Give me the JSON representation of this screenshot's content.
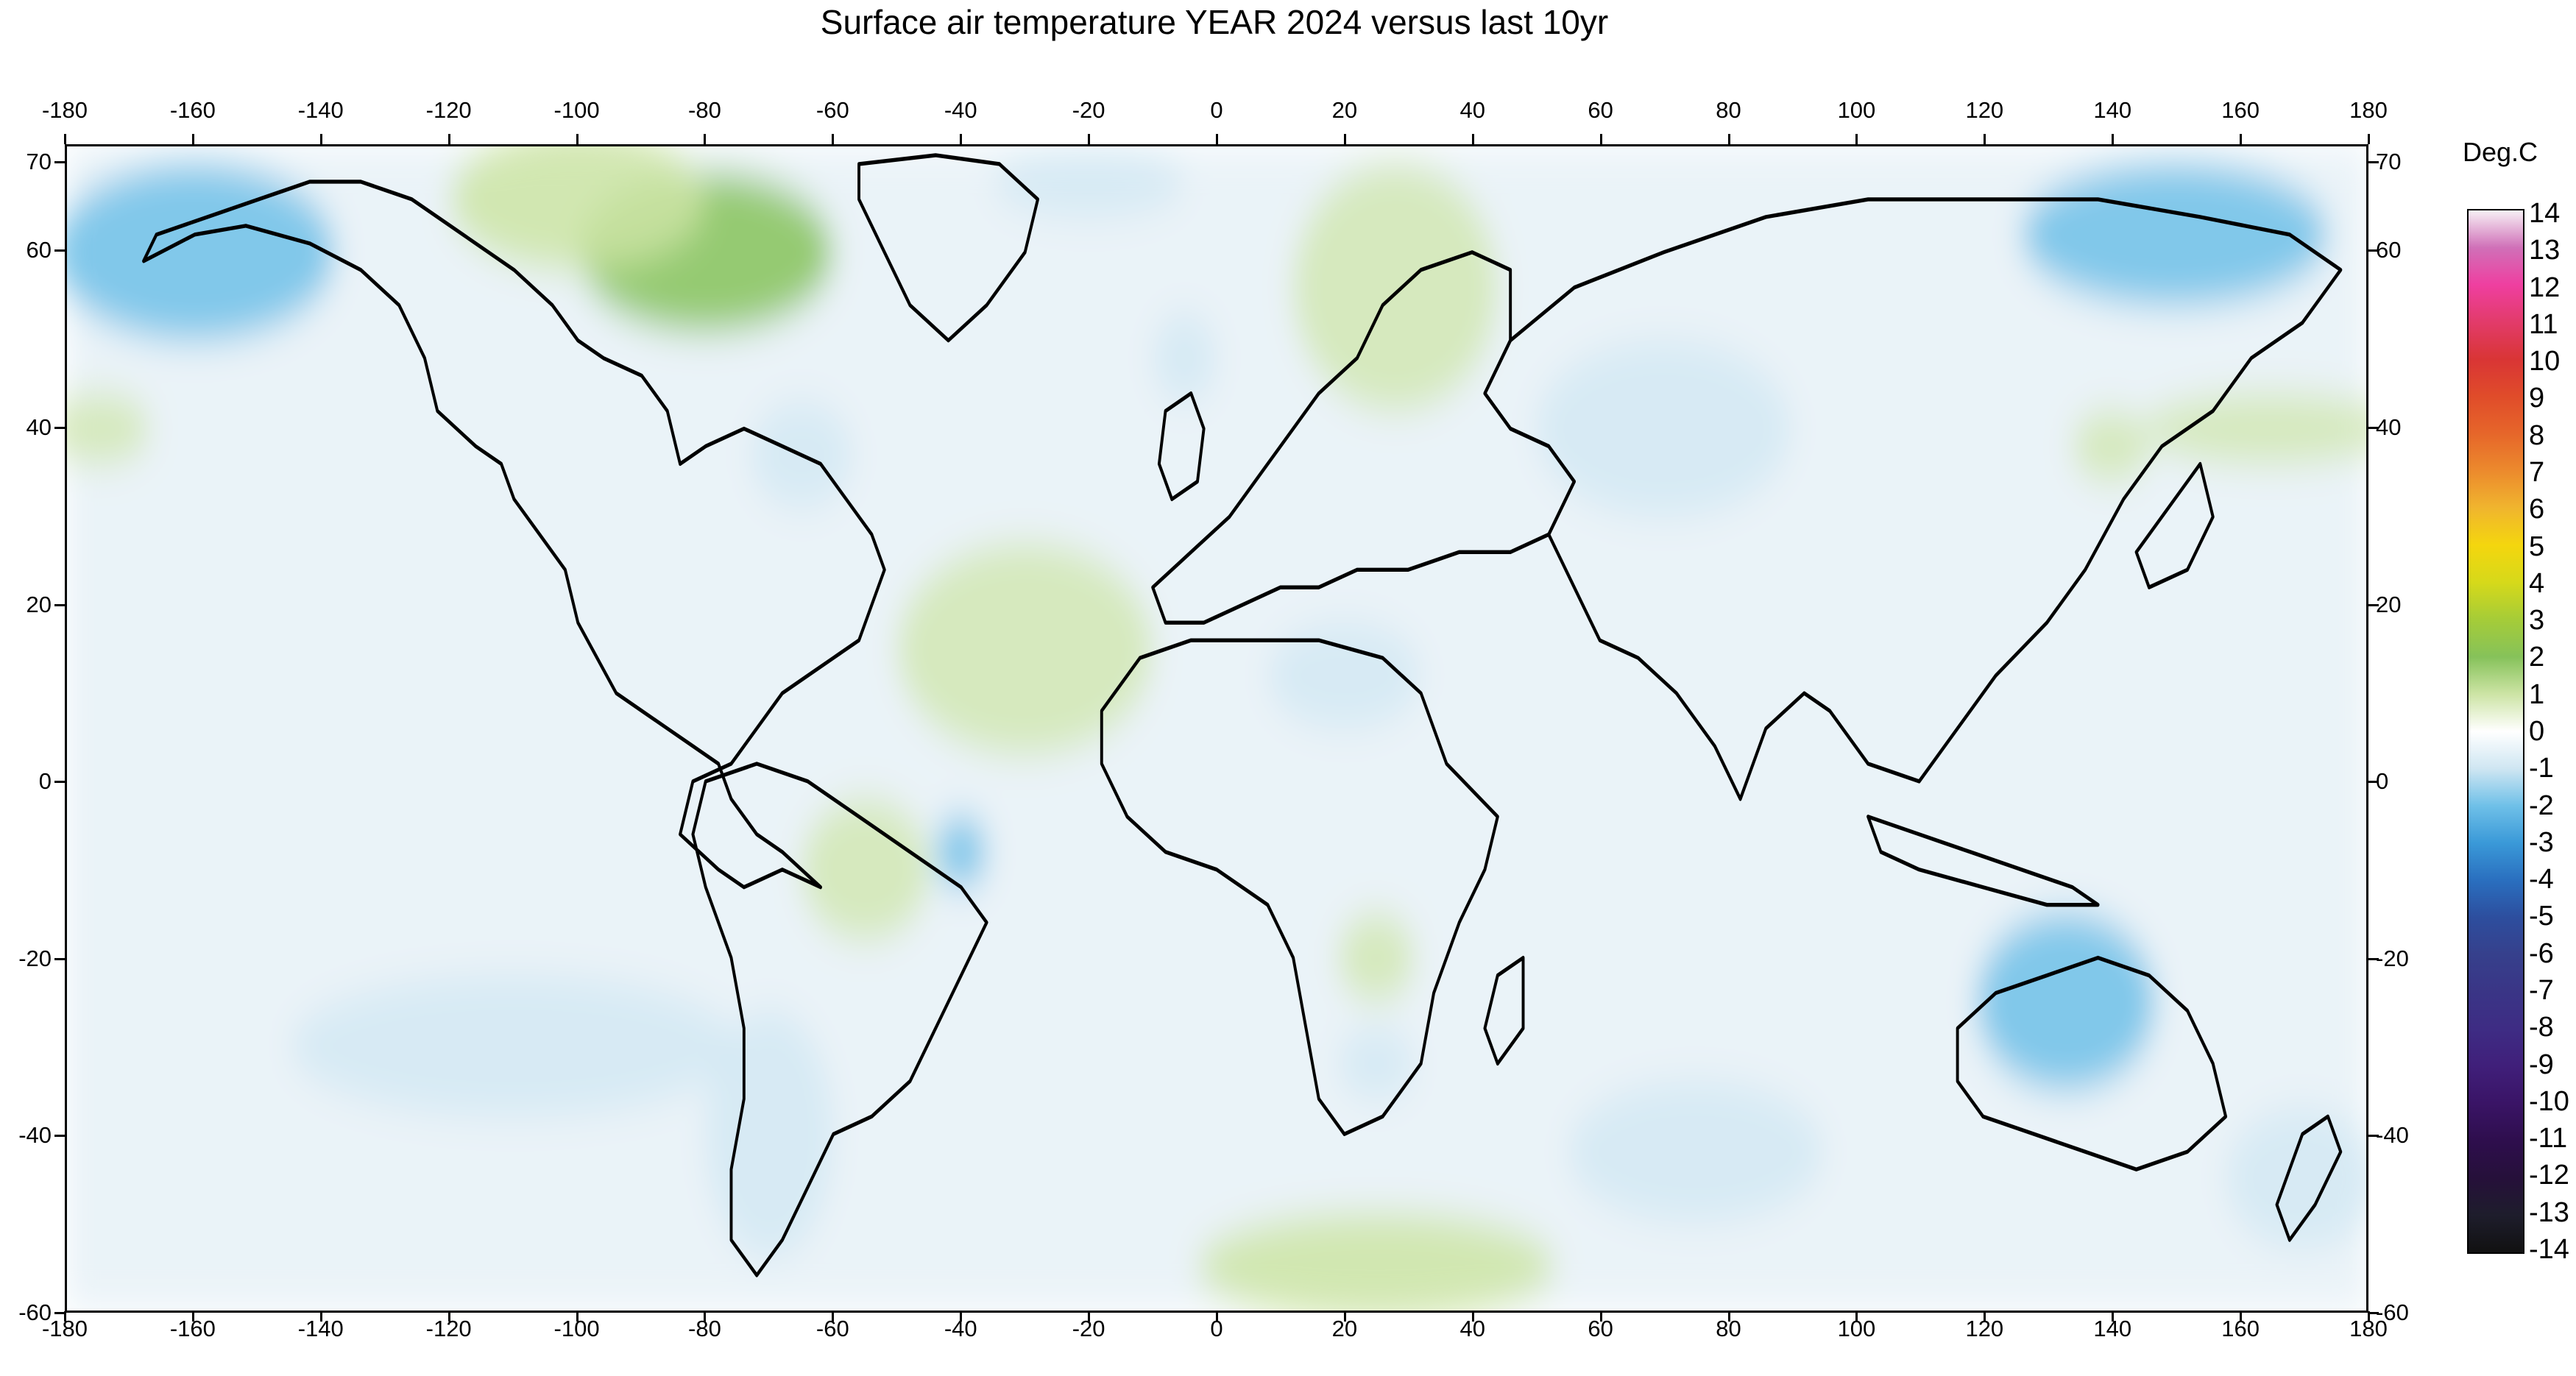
{
  "title": "Surface air temperature YEAR 2024 versus last 10yr",
  "legend": {
    "title": "Deg.C",
    "labels": [
      "14",
      "13",
      "12",
      "11",
      "10",
      "9",
      "8",
      "7",
      "6",
      "5",
      "4",
      "3",
      "2",
      "1",
      "0",
      "-1",
      "-2",
      "-3",
      "-4",
      "-5",
      "-6",
      "-7",
      "-8",
      "-9",
      "-10",
      "-11",
      "-12",
      "-13",
      "-14"
    ],
    "colors": [
      "#f7f0f5",
      "#d070b8",
      "#ef3fa0",
      "#e23b6a",
      "#d93535",
      "#e04c2a",
      "#e6662a",
      "#ec8a2d",
      "#f0b52e",
      "#f4d60e",
      "#d6d91a",
      "#a5cc38",
      "#86c25a",
      "#cde4a5",
      "#ffffff",
      "#cfe6f2",
      "#6fc0e8",
      "#3a99d8",
      "#2a6fbf",
      "#2d4e9e",
      "#36408c",
      "#3a3586",
      "#3e2c84",
      "#401f7a",
      "#3a1466",
      "#2e0e4d",
      "#26103a",
      "#1e1d2c",
      "#111111"
    ]
  },
  "axes": {
    "x_ticks": [
      "-180",
      "-160",
      "-140",
      "-120",
      "-100",
      "-80",
      "-60",
      "-40",
      "-20",
      "0",
      "20",
      "40",
      "60",
      "80",
      "100",
      "120",
      "140",
      "160",
      "180"
    ],
    "y_ticks": [
      "70",
      "60",
      "40",
      "20",
      "0",
      "-20",
      "-40",
      "-60"
    ]
  },
  "map": {
    "projection": "equirectangular",
    "lon_range": [
      -180,
      180
    ],
    "lat_range": [
      -60,
      72
    ],
    "anomaly_regions": [
      {
        "label": "Canada / Hudson Bay warm anomaly",
        "lon": -80,
        "lat": 60,
        "rx": 20,
        "ry": 9,
        "level": 2
      },
      {
        "label": "Northern Canada warm anomaly",
        "lon": -100,
        "lat": 66,
        "rx": 20,
        "ry": 8,
        "level": 1.5
      },
      {
        "label": "Eastern Europe / Scandinavia warm anomaly",
        "lon": 28,
        "lat": 56,
        "rx": 16,
        "ry": 14,
        "level": 1.2
      },
      {
        "label": "Southern Ocean warm anomaly",
        "lon": 25,
        "lat": -55,
        "rx": 28,
        "ry": 6,
        "level": 1.5
      },
      {
        "label": "North Pacific warm band",
        "lon": 165,
        "lat": 40,
        "rx": 20,
        "ry": 4,
        "level": 1.2
      },
      {
        "label": "Central Pacific warm band",
        "lon": -175,
        "lat": 40,
        "rx": 8,
        "ry": 4,
        "level": 1.2
      },
      {
        "label": "Tropical Atlantic warm anomaly",
        "lon": -30,
        "lat": 15,
        "rx": 20,
        "ry": 12,
        "level": 0.8
      },
      {
        "label": "South America interior warm anomaly",
        "lon": -55,
        "lat": -10,
        "rx": 10,
        "ry": 8,
        "level": 0.7
      },
      {
        "label": "Japan warm anomaly",
        "lon": 140,
        "lat": 38,
        "rx": 6,
        "ry": 4,
        "level": 1.2
      },
      {
        "label": "Southern Africa warm anomaly",
        "lon": 25,
        "lat": -20,
        "rx": 6,
        "ry": 5,
        "level": 0.8
      },
      {
        "label": "Alaska / Gulf of Alaska cold anomaly",
        "lon": -160,
        "lat": 60,
        "rx": 22,
        "ry": 10,
        "level": -1.6
      },
      {
        "label": "East Siberia cold anomaly",
        "lon": 150,
        "lat": 62,
        "rx": 24,
        "ry": 8,
        "level": -1.5
      },
      {
        "label": "Central Asia cold anomaly",
        "lon": 70,
        "lat": 40,
        "rx": 20,
        "ry": 10,
        "level": -1.4
      },
      {
        "label": "Australia cold anomaly",
        "lon": 133,
        "lat": -25,
        "rx": 14,
        "ry": 10,
        "level": -1.8
      },
      {
        "label": "Western Atlantic cold anomaly",
        "lon": -65,
        "lat": 37,
        "rx": 8,
        "ry": 6,
        "level": -1.4
      },
      {
        "label": "Southeast Pacific cold anomaly",
        "lon": -110,
        "lat": -30,
        "rx": 35,
        "ry": 8,
        "level": -1.3
      },
      {
        "label": "Southern South America cold anomaly",
        "lon": -70,
        "lat": -40,
        "rx": 10,
        "ry": 14,
        "level": -1.4
      },
      {
        "label": "Eastern Brazil cold anomaly",
        "lon": -40,
        "lat": -8,
        "rx": 4,
        "ry": 4,
        "level": -1.5
      },
      {
        "label": "Africa Sahel cold anomaly",
        "lon": 20,
        "lat": 12,
        "rx": 12,
        "ry": 6,
        "level": -1.2
      },
      {
        "label": "Southern Africa cold anomaly",
        "lon": 25,
        "lat": -32,
        "rx": 6,
        "ry": 4,
        "level": -1.3
      },
      {
        "label": "South Indian Ocean cold anomaly",
        "lon": 75,
        "lat": -42,
        "rx": 20,
        "ry": 8,
        "level": -1.3
      },
      {
        "label": "New Zealand region cold anomaly",
        "lon": 170,
        "lat": -45,
        "rx": 12,
        "ry": 8,
        "level": -1.3
      },
      {
        "label": "Arctic Pacific cold anomaly",
        "lon": -20,
        "lat": 68,
        "rx": 15,
        "ry": 4,
        "level": -1.2
      },
      {
        "label": "Western Europe cold anomaly",
        "lon": -5,
        "lat": 48,
        "rx": 5,
        "ry": 5,
        "level": -1.1
      }
    ]
  }
}
